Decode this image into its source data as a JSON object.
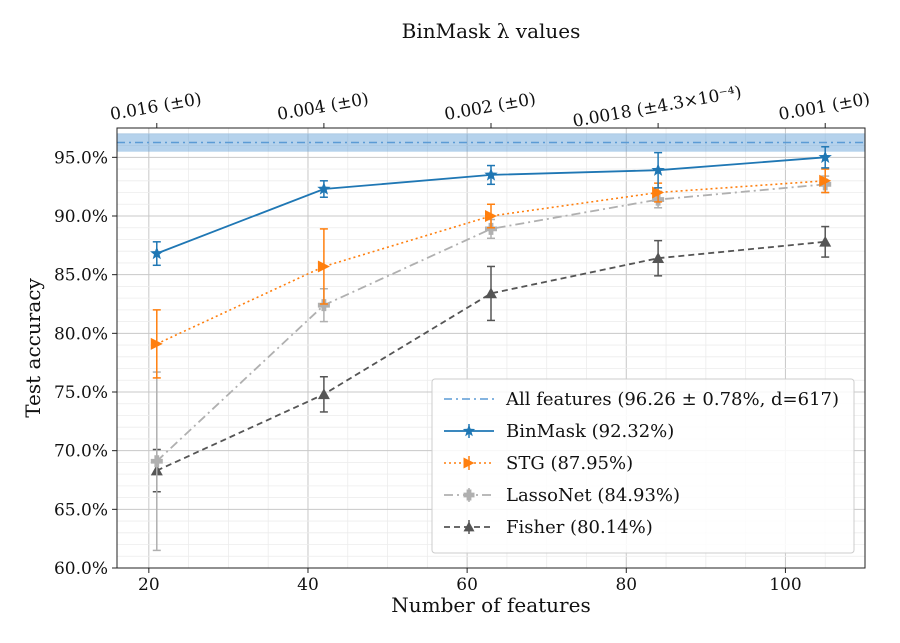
{
  "chart_data": {
    "type": "line",
    "top_axis_title": "BinMask λ values",
    "top_tick_labels": [
      "0.016 (±0)",
      "0.004 (±0)",
      "0.002 (±0)",
      "0.0018 (±4.3×10⁻⁴)",
      "0.001 (±0)"
    ],
    "top_tick_x": [
      21,
      42,
      63,
      84,
      105
    ],
    "xlabel": "Number of features",
    "ylabel": "Test accuracy",
    "xlim": [
      16,
      110
    ],
    "ylim": [
      60,
      97.5
    ],
    "x_ticks": [
      20,
      40,
      60,
      80,
      100
    ],
    "x_tick_labels": [
      "20",
      "40",
      "60",
      "80",
      "100"
    ],
    "y_ticks": [
      60,
      65,
      70,
      75,
      80,
      85,
      90,
      95
    ],
    "y_tick_labels": [
      "60.0%",
      "65.0%",
      "70.0%",
      "75.0%",
      "80.0%",
      "85.0%",
      "90.0%",
      "95.0%"
    ],
    "grid": true,
    "legend_position": "bottom-right",
    "reference": {
      "label": "All features (96.26 ± 0.78%, d=617)",
      "value": 96.26,
      "band": 0.78,
      "color": "#5b9bd5"
    },
    "series": [
      {
        "name": "BinMask (92.32%)",
        "color": "#1f77b4",
        "marker": "star",
        "dash": "",
        "width": 1.8,
        "x": [
          21,
          42,
          63,
          84,
          105
        ],
        "values": [
          86.8,
          92.3,
          93.5,
          93.9,
          95.0
        ],
        "errors": [
          1.0,
          0.7,
          0.8,
          1.5,
          0.9
        ]
      },
      {
        "name": "STG (87.95%)",
        "color": "#ff7f0e",
        "marker": "triangle-right",
        "dash": "2,3",
        "width": 1.6,
        "x": [
          21,
          42,
          63,
          84,
          105
        ],
        "values": [
          79.1,
          85.7,
          90.0,
          92.0,
          93.0
        ],
        "errors": [
          2.9,
          3.2,
          1.0,
          0.8,
          1.0
        ]
      },
      {
        "name": "LassoNet (84.93%)",
        "color": "#b0b0b0",
        "marker": "plus",
        "dash": "9,4,2,4",
        "width": 1.8,
        "x": [
          21,
          42,
          63,
          84,
          105
        ],
        "values": [
          69.1,
          82.4,
          88.9,
          91.4,
          92.7
        ],
        "errors": [
          7.6,
          1.4,
          0.8,
          0.7,
          0.7
        ]
      },
      {
        "name": "Fisher (80.14%)",
        "color": "#555555",
        "marker": "triangle-up",
        "dash": "6,4",
        "width": 1.8,
        "x": [
          21,
          42,
          63,
          84,
          105
        ],
        "values": [
          68.3,
          74.8,
          83.4,
          86.4,
          87.8
        ],
        "errors": [
          1.8,
          1.5,
          2.3,
          1.5,
          1.3
        ]
      }
    ]
  }
}
